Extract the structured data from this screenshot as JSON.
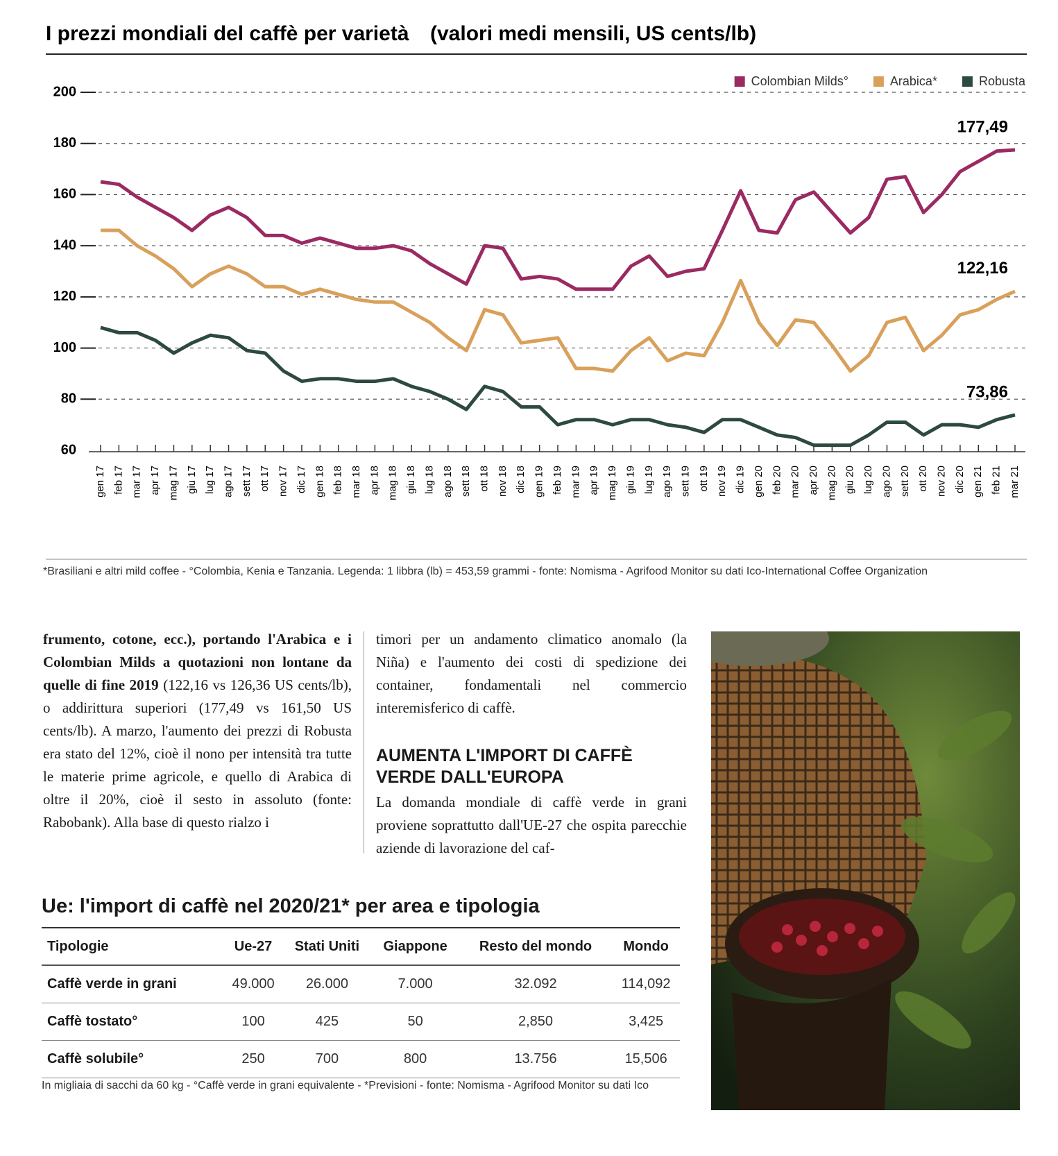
{
  "chart_data": {
    "type": "line",
    "title": "I prezzi mondiali del caffè per varietà",
    "subtitle": "(valori medi mensili, US cents/lb)",
    "categories": [
      "gen 17",
      "feb 17",
      "mar 17",
      "apr 17",
      "mag 17",
      "giu 17",
      "lug 17",
      "ago 17",
      "sett 17",
      "ott 17",
      "nov 17",
      "dic 17",
      "gen 18",
      "feb 18",
      "mar 18",
      "apr 18",
      "mag 18",
      "giu 18",
      "lug 18",
      "ago 18",
      "sett 18",
      "ott 18",
      "nov 18",
      "dic 18",
      "gen 19",
      "feb 19",
      "mar 19",
      "apr 19",
      "mag 19",
      "giu 19",
      "lug 19",
      "ago 19",
      "sett 19",
      "ott 19",
      "nov 19",
      "dic 19",
      "gen 20",
      "feb 20",
      "mar 20",
      "apr 20",
      "mag 20",
      "giu 20",
      "lug 20",
      "ago 20",
      "sett 20",
      "ott 20",
      "nov 20",
      "dic 20",
      "gen 21",
      "feb 21",
      "mar 21"
    ],
    "series": [
      {
        "name": "Colombian Milds°",
        "color": "#9b2a62",
        "end_label": "177,49",
        "values": [
          165,
          164,
          159,
          155,
          151,
          146,
          152,
          155,
          151,
          144,
          144,
          141,
          143,
          141,
          139,
          139,
          140,
          138,
          133,
          129,
          125,
          140,
          139,
          127,
          128,
          127,
          123,
          123,
          123,
          132,
          136,
          128,
          130,
          131,
          146,
          161.5,
          146,
          145,
          158,
          161,
          153,
          145,
          151,
          166,
          167,
          153,
          160,
          169,
          173,
          177,
          177.49
        ]
      },
      {
        "name": "Arabica*",
        "color": "#d9a05b",
        "end_label": "122,16",
        "values": [
          146,
          146,
          140,
          136,
          131,
          124,
          129,
          132,
          129,
          124,
          124,
          121,
          123,
          121,
          119,
          118,
          118,
          114,
          110,
          104,
          99,
          115,
          113,
          102,
          103,
          104,
          92,
          92,
          91,
          99,
          104,
          95,
          98,
          97,
          110,
          126.4,
          110,
          101,
          111,
          110,
          101,
          91,
          97,
          110,
          112,
          99,
          105,
          113,
          115,
          119,
          122.16
        ]
      },
      {
        "name": "Robusta",
        "color": "#2d4a3e",
        "end_label": "73,86",
        "values": [
          108,
          106,
          106,
          103,
          98,
          102,
          105,
          104,
          99,
          98,
          91,
          87,
          88,
          88,
          87,
          87,
          88,
          85,
          83,
          80,
          76,
          85,
          83,
          77,
          77,
          70,
          72,
          72,
          70,
          72,
          72,
          70,
          69,
          67,
          72,
          72,
          69,
          66,
          65,
          62,
          62,
          62,
          66,
          71,
          71,
          66,
          70,
          70,
          69,
          72,
          73.86
        ]
      }
    ],
    "ylim": [
      60,
      200
    ],
    "yticks": [
      60,
      80,
      100,
      120,
      140,
      160,
      180,
      200
    ],
    "grid": true,
    "legend": "upper right",
    "footnote": "*Brasiliani e altri mild coffee - °Colombia, Kenia e Tanzania. Legenda: 1 libbra (lb) = 453,59 grammi - fonte: Nomisma - Agrifood Monitor su dati Ico-International Coffee Organization"
  },
  "article": {
    "col1_bold": "frumento, cotone, ecc.), portando l'Arabica e i Colombian Milds a quotazioni non lontane da quelle di fine 2019",
    "col1_text": " (122,16 vs 126,36 US cents/lb), o addirittura superiori (177,49 vs 161,50 US cents/lb). A marzo, l'aumento dei prezzi di Robusta era stato del 12%, cioè il nono per intensità tra tutte le materie prime agricole, e quello di Arabica di oltre il 20%, cioè il sesto in assoluto (fonte: Rabobank). Alla base di questo rialzo i",
    "col2_text": "timori per un andamento climatico anomalo (la Niña) e l'aumento dei costi di spedizione dei container, fondamentali nel commercio interemisferico di caffè.",
    "heading": "AUMENTA L'IMPORT DI CAFFÈ VERDE DALL'EUROPA",
    "col2_text2": "La domanda mondiale di caffè verde in grani proviene soprattutto dall'UE-27 che ospita parecchie aziende di lavorazione del caf-"
  },
  "table": {
    "title": "Ue: l'import di caffè nel 2020/21* per area e tipologia",
    "header": [
      "Tipologie",
      "Ue-27",
      "Stati Uniti",
      "Giappone",
      "Resto del mondo",
      "Mondo"
    ],
    "rows": [
      [
        "Caffè verde in grani",
        "49.000",
        "26.000",
        "7.000",
        "32.092",
        "114,092"
      ],
      [
        "Caffè tostato°",
        "100",
        "425",
        "50",
        "2,850",
        "3,425"
      ],
      [
        "Caffè solubile°",
        "250",
        "700",
        "800",
        "13.756",
        "15,506"
      ]
    ],
    "note": "In migliaia di sacchi da 60 kg - °Caffè verde in grani equivalente - *Previsioni - fonte: Nomisma - Agrifood Monitor su dati Ico"
  }
}
